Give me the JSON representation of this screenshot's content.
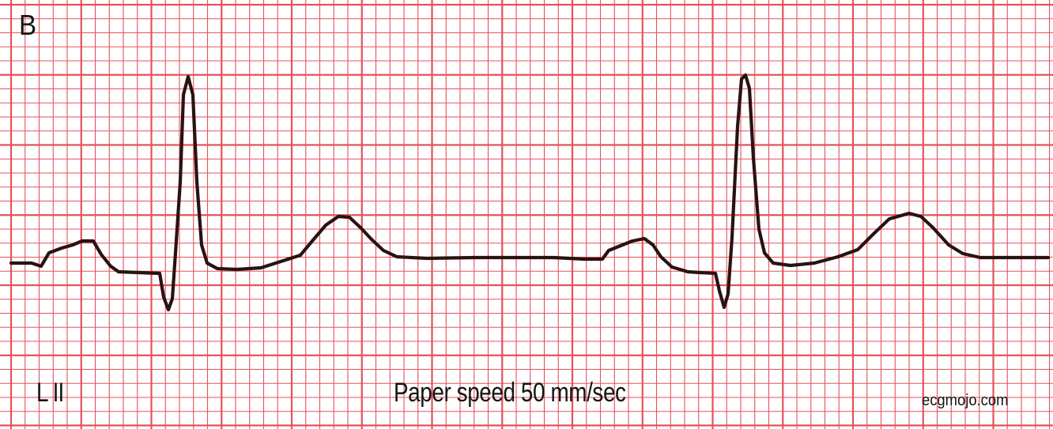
{
  "panel_letter": "B",
  "lead_label": "L II",
  "paper_speed_label": "Paper speed 50 mm/sec",
  "watermark": "ecgmojo.com",
  "colors": {
    "grid_line": "#e3535c",
    "paper_background": "#ffffff",
    "trace": "#2a1212"
  },
  "waveform": {
    "lead": "II",
    "beats": 2,
    "components": [
      "P-wave",
      "Q-wave",
      "R-wave",
      "S-wave",
      "T-wave"
    ]
  }
}
